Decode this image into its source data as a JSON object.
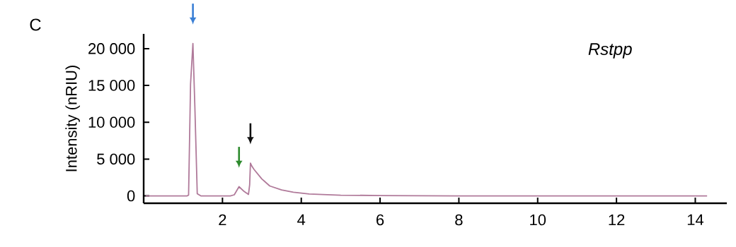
{
  "chart_data": {
    "type": "line",
    "ylabel": "Intensity (nRIU)",
    "annotations": [
      "C"
    ],
    "x": [
      0.05,
      1.1,
      1.14,
      1.19,
      1.25,
      1.3,
      1.36,
      1.45,
      2.2,
      2.3,
      2.42,
      2.55,
      2.66,
      2.69,
      2.71,
      2.75,
      2.8,
      3.0,
      3.2,
      3.5,
      3.8,
      4.2,
      5.0,
      6.0,
      8.0,
      14.3
    ],
    "series": [
      {
        "name": "Rstpp",
        "color": "#b07a9a",
        "values": [
          0,
          0,
          100,
          15200,
          20700,
          12000,
          300,
          0,
          0,
          150,
          1250,
          600,
          200,
          1500,
          4450,
          4000,
          3600,
          2300,
          1350,
          800,
          500,
          250,
          100,
          50,
          0,
          0
        ]
      }
    ],
    "xlim": [
      0,
      14.8
    ],
    "ylim": [
      -1000,
      22000
    ],
    "xticks": [
      2,
      4,
      6,
      8,
      10,
      12,
      14
    ],
    "yticks": [
      {
        "value": 0,
        "label": "0"
      },
      {
        "value": 5000,
        "label": "5 000"
      },
      {
        "value": 10000,
        "label": "10 000"
      },
      {
        "value": 15000,
        "label": "15 000"
      },
      {
        "value": 20000,
        "label": "20 000"
      }
    ],
    "grid": false,
    "legend": false,
    "marker": "none",
    "line_style": "solid"
  }
}
